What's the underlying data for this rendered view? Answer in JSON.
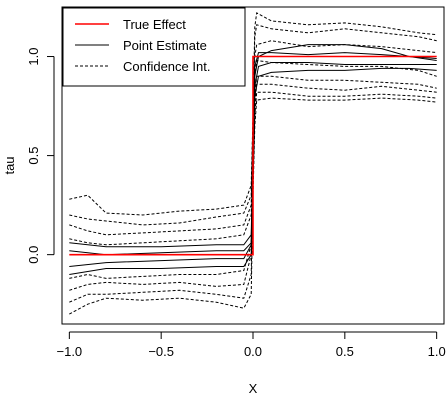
{
  "chart_data": {
    "type": "line",
    "title": "",
    "xlabel": "X",
    "ylabel": "tau",
    "xlim": [
      -1.04,
      1.04
    ],
    "ylim": [
      -0.35,
      1.25
    ],
    "x_ticks": [
      -1.0,
      -0.5,
      0.0,
      0.5,
      1.0
    ],
    "x_tick_labels": [
      "−1.0",
      "−0.5",
      "0.0",
      "0.5",
      "1.0"
    ],
    "y_ticks": [
      0.0,
      0.5,
      1.0
    ],
    "y_tick_labels": [
      "0.0",
      "0.5",
      "1.0"
    ],
    "grid": false,
    "legend": {
      "position": "top-left",
      "entries": [
        {
          "label": "True Effect",
          "color": "#ff0000",
          "style": "solid"
        },
        {
          "label": "Point Estimate",
          "color": "#000000",
          "style": "solid"
        },
        {
          "label": "Confidence Int.",
          "color": "#000000",
          "style": "dashed"
        }
      ]
    },
    "series": [
      {
        "name": "True Effect",
        "color": "#ff0000",
        "style": "solid",
        "x": [
          -1.0,
          0.0,
          0.0,
          1.0
        ],
        "y": [
          0.0,
          0.0,
          1.0,
          1.0
        ]
      },
      {
        "color": "#000000",
        "style": "solid",
        "x": [
          -1.0,
          -0.8,
          -0.5,
          -0.2,
          -0.05,
          -0.01,
          0.0,
          0.01,
          0.03,
          0.1,
          0.3,
          0.5,
          0.7,
          0.85,
          1.0
        ],
        "y": [
          0.06,
          0.04,
          0.04,
          0.05,
          0.05,
          0.1,
          0.5,
          0.9,
          1.0,
          1.03,
          1.06,
          1.06,
          1.04,
          1.0,
          0.99
        ]
      },
      {
        "color": "#000000",
        "style": "solid",
        "x": [
          -1.0,
          -0.8,
          -0.5,
          -0.2,
          -0.05,
          -0.01,
          0.0,
          0.01,
          0.03,
          0.1,
          0.3,
          0.5,
          0.7,
          0.85,
          1.0
        ],
        "y": [
          0.02,
          0.0,
          0.01,
          0.02,
          0.02,
          0.06,
          0.5,
          0.95,
          1.02,
          1.02,
          1.01,
          1.02,
          1.01,
          1.0,
          0.98
        ]
      },
      {
        "color": "#000000",
        "style": "solid",
        "x": [
          -1.0,
          -0.8,
          -0.5,
          -0.2,
          -0.05,
          -0.01,
          0.0,
          0.01,
          0.03,
          0.1,
          0.3,
          0.5,
          0.7,
          0.85,
          1.0
        ],
        "y": [
          -0.06,
          -0.04,
          -0.03,
          -0.02,
          -0.02,
          0.05,
          0.45,
          0.85,
          0.95,
          0.97,
          0.97,
          0.96,
          0.96,
          0.96,
          0.96
        ]
      },
      {
        "color": "#000000",
        "style": "solid",
        "x": [
          -1.0,
          -0.8,
          -0.5,
          -0.2,
          -0.05,
          -0.01,
          0.0,
          0.01,
          0.03,
          0.1,
          0.3,
          0.5,
          0.7,
          0.85,
          1.0
        ],
        "y": [
          -0.1,
          -0.07,
          -0.07,
          -0.06,
          -0.06,
          0.0,
          0.4,
          0.8,
          0.9,
          0.92,
          0.93,
          0.93,
          0.94,
          0.94,
          0.93
        ]
      },
      {
        "color": "#000000",
        "style": "dashed",
        "x": [
          -1.0,
          -0.9,
          -0.8,
          -0.6,
          -0.4,
          -0.2,
          -0.05,
          -0.01,
          0.0,
          0.01,
          0.02,
          0.1,
          0.3,
          0.5,
          0.7,
          0.9,
          1.0
        ],
        "y": [
          0.28,
          0.3,
          0.21,
          0.2,
          0.22,
          0.23,
          0.25,
          0.35,
          0.7,
          1.15,
          1.22,
          1.18,
          1.16,
          1.17,
          1.15,
          1.12,
          1.11
        ]
      },
      {
        "color": "#000000",
        "style": "dashed",
        "x": [
          -1.0,
          -0.9,
          -0.8,
          -0.6,
          -0.4,
          -0.2,
          -0.05,
          -0.01,
          0.0,
          0.01,
          0.02,
          0.1,
          0.3,
          0.5,
          0.7,
          0.9,
          1.0
        ],
        "y": [
          0.2,
          0.18,
          0.17,
          0.15,
          0.16,
          0.19,
          0.21,
          0.3,
          0.7,
          1.1,
          1.16,
          1.14,
          1.12,
          1.14,
          1.12,
          1.1,
          1.08
        ]
      },
      {
        "color": "#000000",
        "style": "dashed",
        "x": [
          -1.0,
          -0.9,
          -0.8,
          -0.6,
          -0.4,
          -0.2,
          -0.05,
          -0.01,
          0.0,
          0.01,
          0.02,
          0.1,
          0.3,
          0.5,
          0.7,
          0.9,
          1.0
        ],
        "y": [
          0.15,
          0.12,
          0.1,
          0.11,
          0.12,
          0.13,
          0.15,
          0.25,
          0.6,
          1.0,
          1.06,
          1.08,
          1.05,
          1.06,
          1.05,
          1.03,
          1.02
        ]
      },
      {
        "color": "#000000",
        "style": "dashed",
        "x": [
          -1.0,
          -0.9,
          -0.8,
          -0.6,
          -0.4,
          -0.2,
          -0.05,
          -0.01,
          0.0,
          0.01,
          0.02,
          0.1,
          0.3,
          0.5,
          0.7,
          0.9,
          1.0
        ],
        "y": [
          0.08,
          0.06,
          0.05,
          0.06,
          0.07,
          0.08,
          0.1,
          0.2,
          0.55,
          0.9,
          0.98,
          0.97,
          0.96,
          0.95,
          0.95,
          0.93,
          0.9
        ]
      },
      {
        "color": "#000000",
        "style": "dashed",
        "x": [
          -1.0,
          -0.9,
          -0.8,
          -0.6,
          -0.4,
          -0.2,
          -0.05,
          -0.01,
          0.0,
          0.01,
          0.02,
          0.1,
          0.3,
          0.5,
          0.7,
          0.9,
          1.0
        ],
        "y": [
          -0.12,
          -0.1,
          -0.12,
          -0.11,
          -0.1,
          -0.1,
          -0.08,
          0.05,
          0.45,
          0.8,
          0.9,
          0.9,
          0.88,
          0.88,
          0.87,
          0.86,
          0.84
        ]
      },
      {
        "color": "#000000",
        "style": "dashed",
        "x": [
          -1.0,
          -0.9,
          -0.8,
          -0.6,
          -0.4,
          -0.2,
          -0.05,
          -0.01,
          0.0,
          0.01,
          0.02,
          0.1,
          0.3,
          0.5,
          0.7,
          0.9,
          1.0
        ],
        "y": [
          -0.18,
          -0.15,
          -0.14,
          -0.15,
          -0.14,
          -0.16,
          -0.15,
          0.0,
          0.4,
          0.75,
          0.86,
          0.86,
          0.84,
          0.83,
          0.85,
          0.83,
          0.82
        ]
      },
      {
        "color": "#000000",
        "style": "dashed",
        "x": [
          -1.0,
          -0.9,
          -0.8,
          -0.6,
          -0.4,
          -0.2,
          -0.05,
          -0.01,
          0.0,
          0.01,
          0.02,
          0.1,
          0.3,
          0.5,
          0.7,
          0.9,
          1.0
        ],
        "y": [
          -0.24,
          -0.2,
          -0.2,
          -0.19,
          -0.18,
          -0.2,
          -0.22,
          -0.1,
          0.35,
          0.7,
          0.82,
          0.82,
          0.8,
          0.8,
          0.81,
          0.8,
          0.79
        ]
      },
      {
        "color": "#000000",
        "style": "dashed",
        "x": [
          -1.0,
          -0.9,
          -0.8,
          -0.6,
          -0.4,
          -0.2,
          -0.05,
          -0.01,
          0.0,
          0.01,
          0.02,
          0.1,
          0.3,
          0.5,
          0.7,
          0.9,
          1.0
        ],
        "y": [
          -0.3,
          -0.25,
          -0.22,
          -0.23,
          -0.22,
          -0.24,
          -0.27,
          -0.2,
          0.3,
          0.65,
          0.78,
          0.79,
          0.78,
          0.78,
          0.79,
          0.78,
          0.77
        ]
      }
    ]
  }
}
